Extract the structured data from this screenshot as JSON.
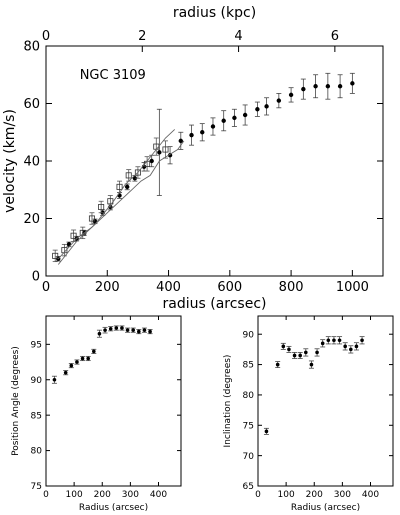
{
  "chart_data": [
    {
      "type": "scatter",
      "title": "",
      "annotation": "NGC 3109",
      "xlabel": "radius (arcsec)",
      "ylabel": "velocity (km/s)",
      "x2label": "radius (kpc)",
      "xlim": [
        0,
        1100
      ],
      "ylim": [
        0,
        80
      ],
      "x2lim": [
        0,
        7.0
      ],
      "xticks": [
        0,
        200,
        400,
        600,
        800,
        1000
      ],
      "yticks": [
        0,
        20,
        40,
        60,
        80
      ],
      "x2ticks": [
        0,
        2,
        4,
        6
      ],
      "grid": false,
      "series": [
        {
          "marker": "filled-circle-errorbar",
          "x": [
            40,
            75,
            100,
            125,
            160,
            185,
            210,
            240,
            265,
            290,
            320,
            345,
            370,
            405,
            440,
            475,
            510,
            545,
            580,
            615,
            650,
            690,
            720,
            760,
            800,
            840,
            880,
            920,
            960,
            1000
          ],
          "y": [
            6,
            11,
            13,
            15,
            19,
            22,
            24,
            28,
            31,
            34,
            38,
            40,
            43,
            42,
            47,
            49,
            50,
            52,
            54,
            55,
            56,
            58,
            59,
            61,
            63,
            65,
            66,
            66,
            66,
            67
          ],
          "yerr": [
            0.8,
            0.8,
            0.8,
            0.8,
            0.8,
            1,
            1,
            1,
            1,
            1,
            1.5,
            2,
            15,
            3,
            3,
            3.5,
            3,
            3,
            3.5,
            3,
            3.5,
            2.5,
            3,
            2.5,
            2.5,
            3.5,
            4,
            4.5,
            4,
            3.5
          ]
        },
        {
          "marker": "open-square-errorbar",
          "x": [
            30,
            60,
            90,
            120,
            150,
            180,
            210,
            240,
            270,
            300,
            330,
            360,
            390
          ],
          "y": [
            7,
            9,
            14,
            15,
            20,
            24,
            26,
            31,
            35,
            36,
            39,
            45,
            44
          ],
          "yerr": [
            2,
            2,
            2,
            2,
            2,
            2,
            2,
            2,
            2,
            2,
            2.5,
            3,
            3
          ]
        },
        {
          "marker": "line",
          "x": [
            40,
            100,
            160,
            220,
            260,
            300,
            330,
            360,
            390,
            420
          ],
          "y": [
            4,
            12,
            18,
            26,
            32,
            36,
            40,
            44,
            48,
            51
          ]
        },
        {
          "marker": "line",
          "x": [
            40,
            100,
            150,
            200,
            240,
            280,
            310,
            340,
            370,
            400,
            430,
            450
          ],
          "y": [
            6,
            13,
            17,
            22,
            26,
            30,
            33,
            35,
            40,
            42,
            44,
            47
          ]
        }
      ]
    },
    {
      "type": "scatter",
      "title": "",
      "xlabel": "Radius   (arcsec)",
      "ylabel": "Position Angle  (degrees)",
      "xlim": [
        0,
        480
      ],
      "ylim": [
        75,
        99
      ],
      "xticks": [
        0,
        100,
        200,
        300,
        400
      ],
      "yticks": [
        75,
        80,
        85,
        90,
        95
      ],
      "grid": false,
      "series": [
        {
          "marker": "filled-circle-errorbar",
          "x": [
            30,
            70,
            90,
            110,
            130,
            150,
            170,
            190,
            210,
            230,
            250,
            270,
            290,
            310,
            330,
            350,
            370
          ],
          "y": [
            90,
            91,
            92,
            92.5,
            93,
            93,
            94,
            96.5,
            97,
            97.2,
            97.3,
            97.3,
            97,
            97,
            96.8,
            97,
            96.8
          ],
          "yerr": [
            0.5,
            0.3,
            0.3,
            0.3,
            0.3,
            0.3,
            0.3,
            0.5,
            0.4,
            0.3,
            0.3,
            0.3,
            0.3,
            0.3,
            0.3,
            0.3,
            0.3
          ]
        }
      ]
    },
    {
      "type": "scatter",
      "title": "",
      "xlabel": "Radius   (arcsec)",
      "ylabel": "Inclination  (degrees)",
      "xlim": [
        0,
        480
      ],
      "ylim": [
        65,
        93
      ],
      "xticks": [
        0,
        100,
        200,
        300,
        400
      ],
      "yticks": [
        65,
        70,
        75,
        80,
        85,
        90
      ],
      "grid": false,
      "series": [
        {
          "marker": "filled-circle-errorbar",
          "x": [
            30,
            70,
            90,
            110,
            130,
            150,
            170,
            190,
            210,
            230,
            250,
            270,
            290,
            310,
            330,
            350,
            370
          ],
          "y": [
            74,
            85,
            88,
            87.5,
            86.5,
            86.5,
            87,
            85,
            87,
            88.5,
            89,
            89,
            89,
            88,
            87.5,
            88,
            89
          ],
          "yerr": [
            0.5,
            0.5,
            0.5,
            0.5,
            0.5,
            0.5,
            0.6,
            0.6,
            0.6,
            0.6,
            0.6,
            0.6,
            0.6,
            0.6,
            0.6,
            0.6,
            0.6
          ]
        }
      ]
    }
  ]
}
